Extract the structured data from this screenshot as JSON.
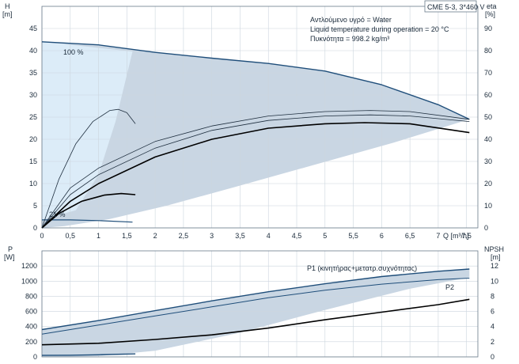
{
  "chart_data": [
    {
      "type": "line",
      "panel": "head-efficiency",
      "header_box": "CME 5-3, 3*460 V",
      "info_lines": [
        "Αντλούμενο υγρό = Water",
        "Liquid temperature during operation = 20 °C",
        "Πυκνότητα = 998.2 kg/m³"
      ],
      "ylabel_left": "H",
      "yunit_left": "[m]",
      "ylabel_right": "eta",
      "yunit_right": "[%]",
      "xlabel": "Q [m³/h]",
      "xlim": [
        0,
        7.7
      ],
      "ylim_left": [
        0,
        50
      ],
      "ylim_right": [
        0,
        100
      ],
      "x_ticks": [
        "0",
        "0,5",
        "1",
        "1,5",
        "2",
        "2,5",
        "3",
        "3,5",
        "4",
        "4,5",
        "5",
        "5,5",
        "6",
        "6,5",
        "7",
        "7,5"
      ],
      "y_ticks_left": [
        "0",
        "5",
        "10",
        "15",
        "20",
        "25",
        "30",
        "35",
        "40",
        "45"
      ],
      "y_ticks_right": [
        "0",
        "10",
        "20",
        "30",
        "40",
        "50",
        "60",
        "70",
        "80",
        "90"
      ],
      "speed_labels": [
        {
          "text": "100 %",
          "x": 0.55,
          "y": 42.2
        },
        {
          "text": "21 %",
          "x": 0.2,
          "y": 2.6
        }
      ],
      "area_color": "#c9d6e3",
      "highlight_color": "#dcecf8",
      "head_max": {
        "x": [
          0,
          1,
          2,
          3,
          4,
          5,
          6,
          7,
          7.55
        ],
        "y": [
          42,
          41.3,
          39.6,
          38.3,
          37.1,
          35.4,
          32.3,
          27.8,
          24.5
        ]
      },
      "head_min": {
        "x": [
          0,
          0.5,
          1,
          1.6
        ],
        "y": [
          1.8,
          1.8,
          1.65,
          1.3
        ]
      },
      "envelope_right": {
        "x": [
          7.55,
          6.2,
          4.8,
          3.4,
          2.2,
          1.2,
          0.4,
          0
        ],
        "y": [
          24.5,
          19.2,
          14.2,
          9.2,
          5.0,
          2.0,
          0.4,
          0
        ]
      },
      "efficiency_max": {
        "x": [
          0,
          0.5,
          1,
          2,
          3,
          4,
          5,
          5.8,
          6.5,
          7.55
        ],
        "y": [
          0,
          15,
          24,
          36,
          44,
          48.5,
          50.5,
          51,
          50.5,
          48
        ]
      },
      "efficiency_max_2": {
        "x": [
          0,
          0.5,
          1,
          2,
          3,
          4,
          5,
          5.8,
          6.5,
          7.55
        ],
        "y": [
          0,
          18,
          27,
          39,
          46,
          50.5,
          52.5,
          53,
          52.5,
          49
        ]
      },
      "efficiency_max_bold": {
        "x": [
          0,
          0.5,
          1,
          2,
          3,
          4,
          5,
          5.7,
          6.5,
          7.55
        ],
        "y": [
          0,
          12,
          20,
          32,
          40,
          45,
          47,
          47.5,
          47,
          43
        ]
      },
      "efficiency_min": {
        "x": [
          0,
          0.3,
          0.7,
          1.1,
          1.4,
          1.65
        ],
        "y": [
          0,
          6.5,
          12,
          14.8,
          15.5,
          15
        ]
      },
      "efficiency_thin_peak": {
        "x": [
          0,
          0.3,
          0.6,
          0.9,
          1.2,
          1.35,
          1.5,
          1.65
        ],
        "y": [
          0,
          22,
          38,
          48,
          53,
          53.5,
          52,
          47
        ]
      }
    },
    {
      "type": "line",
      "panel": "power-npsh",
      "ylabel_left": "P",
      "yunit_left": "[W]",
      "ylabel_right": "NPSH",
      "yunit_right": "[m]",
      "xlim": [
        0,
        7.7
      ],
      "ylim_left": [
        0,
        1400
      ],
      "ylim_right": [
        0,
        14
      ],
      "y_ticks_left": [
        "0",
        "200",
        "400",
        "600",
        "800",
        "1000",
        "1200"
      ],
      "y_ticks_right": [
        "0",
        "2",
        "4",
        "6",
        "8",
        "10",
        "12"
      ],
      "series": [
        {
          "name": "P1 (κινητήρας+μετατρ.συχνότητας)",
          "x": [
            0,
            1,
            2,
            3,
            4,
            5,
            6,
            7,
            7.55
          ],
          "y": [
            360,
            480,
            610,
            740,
            860,
            965,
            1060,
            1130,
            1160
          ]
        },
        {
          "name": "P2",
          "x": [
            0,
            1,
            2,
            3,
            4,
            5,
            6,
            7,
            7.55
          ],
          "y": [
            300,
            420,
            540,
            660,
            780,
            880,
            960,
            1020,
            1040
          ]
        }
      ],
      "npsh": {
        "x": [
          0,
          1,
          2,
          3,
          4,
          5,
          6,
          7,
          7.55
        ],
        "y": [
          1.6,
          1.8,
          2.3,
          2.9,
          3.8,
          4.9,
          5.9,
          6.9,
          7.6
        ]
      },
      "power_min": {
        "x": [
          0,
          0.5,
          1,
          1.65
        ],
        "y": [
          20,
          22,
          28,
          40
        ]
      },
      "area": {
        "x": [
          0,
          1,
          2,
          3,
          4,
          5,
          6,
          7,
          7.55,
          7.55,
          6.5,
          5,
          3.5,
          2,
          1,
          0
        ],
        "y": [
          360,
          480,
          610,
          740,
          860,
          965,
          1060,
          1130,
          1160,
          1050,
          900,
          620,
          320,
          80,
          10,
          0
        ]
      }
    }
  ]
}
